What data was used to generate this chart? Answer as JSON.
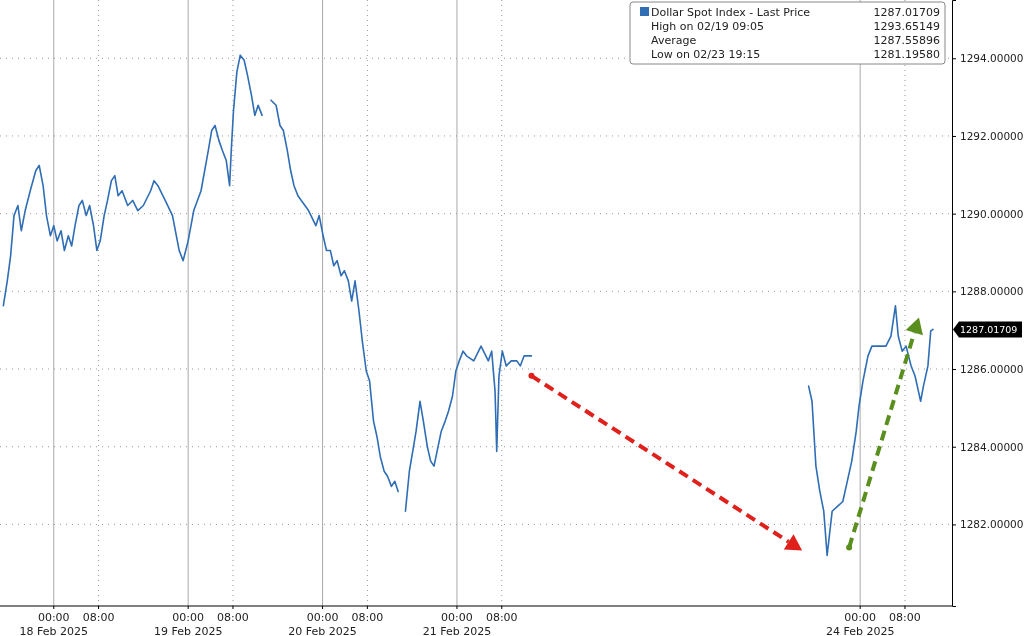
{
  "chart_data": {
    "type": "line",
    "x": [
      "2025-02-17T15:00",
      "2025-02-17T15:42",
      "2025-02-17T16:18",
      "2025-02-17T16:54",
      "2025-02-17T17:36",
      "2025-02-17T18:12",
      "2025-02-17T18:54",
      "2025-02-17T19:48",
      "2025-02-17T20:48",
      "2025-02-17T21:24",
      "2025-02-17T22:06",
      "2025-02-17T22:42",
      "2025-02-17T23:24",
      "2025-02-18T00:00",
      "2025-02-18T00:36",
      "2025-02-18T01:18",
      "2025-02-18T01:54",
      "2025-02-18T02:36",
      "2025-02-18T03:12",
      "2025-02-18T03:48",
      "2025-02-18T04:30",
      "2025-02-18T05:06",
      "2025-02-18T05:48",
      "2025-02-18T06:24",
      "2025-02-18T07:06",
      "2025-02-18T07:42",
      "2025-02-18T08:18",
      "2025-02-18T09:00",
      "2025-02-18T09:36",
      "2025-02-18T10:18",
      "2025-02-18T10:54",
      "2025-02-18T11:30",
      "2025-02-18T12:12",
      "2025-02-18T13:12",
      "2025-02-18T14:06",
      "2025-02-18T15:00",
      "2025-02-18T16:00",
      "2025-02-18T17:18",
      "2025-02-18T17:54",
      "2025-02-18T18:36",
      "2025-02-18T19:54",
      "2025-02-18T21:12",
      "2025-02-18T22:24",
      "2025-02-18T23:06",
      "2025-02-19T00:00",
      "2025-02-19T01:00",
      "2025-02-19T02:18",
      "2025-02-19T03:36",
      "2025-02-19T04:12",
      "2025-02-19T04:48",
      "2025-02-19T05:30",
      "2025-02-19T06:06",
      "2025-02-19T06:48",
      "2025-02-19T07:24",
      "2025-02-19T07:42",
      "2025-02-19T08:06",
      "2025-02-19T08:42",
      "2025-02-19T09:18",
      "2025-02-19T10:00",
      "2025-02-19T10:36",
      "2025-02-19T11:18",
      "2025-02-19T11:54",
      "2025-02-19T12:30",
      "2025-02-19T13:12",
      "2025-02-19T14:00",
      "2025-02-19T14:48",
      "2025-02-19T15:42",
      "2025-02-19T16:24",
      "2025-02-19T17:00",
      "2025-02-19T17:42",
      "2025-02-19T18:18",
      "2025-02-19T18:54",
      "2025-02-19T19:36",
      "2025-02-19T20:12",
      "2025-02-19T21:30",
      "2025-02-19T22:48",
      "2025-02-19T23:24",
      "2025-02-20T00:06",
      "2025-02-20T00:42",
      "2025-02-20T01:24",
      "2025-02-20T02:00",
      "2025-02-20T02:36",
      "2025-02-20T03:18",
      "2025-02-20T03:54",
      "2025-02-20T04:36",
      "2025-02-20T05:12",
      "2025-02-20T05:48",
      "2025-02-20T06:30",
      "2025-02-20T07:06",
      "2025-02-20T07:48",
      "2025-02-20T08:24",
      "2025-02-20T09:06",
      "2025-02-20T09:42",
      "2025-02-20T10:18",
      "2025-02-20T11:00",
      "2025-02-20T11:36",
      "2025-02-20T12:18",
      "2025-02-20T12:54",
      "2025-02-20T13:30",
      "2025-02-20T14:12",
      "2025-02-20T14:48",
      "2025-02-20T15:30",
      "2025-02-20T16:06",
      "2025-02-20T16:42",
      "2025-02-20T17:24",
      "2025-02-20T18:00",
      "2025-02-20T18:42",
      "2025-02-20T19:18",
      "2025-02-20T19:54",
      "2025-02-20T21:12",
      "2025-02-20T21:54",
      "2025-02-20T22:30",
      "2025-02-20T23:12",
      "2025-02-20T23:48",
      "2025-02-21T00:24",
      "2025-02-21T01:06",
      "2025-02-21T01:42",
      "2025-02-21T03:00",
      "2025-02-21T04:18",
      "2025-02-21T05:36",
      "2025-02-21T06:12",
      "2025-02-21T06:48",
      "2025-02-21T07:06",
      "2025-02-21T07:30",
      "2025-02-21T08:06",
      "2025-02-21T08:48",
      "2025-02-21T09:42",
      "2025-02-21T10:42",
      "2025-02-21T11:18",
      "2025-02-21T12:00",
      "2025-02-21T13:18",
      "2025-02-21T14:00",
      "2025-02-23T14:48",
      "2025-02-23T15:24",
      "2025-02-23T16:06",
      "2025-02-23T16:48",
      "2025-02-23T17:30",
      "2025-02-23T18:06",
      "2025-02-23T19:00",
      "2025-02-23T19:54",
      "2025-02-23T20:54",
      "2025-02-23T21:42",
      "2025-02-23T22:30",
      "2025-02-23T23:18",
      "2025-02-23T23:48",
      "2025-02-24T00:30",
      "2025-02-24T01:24",
      "2025-02-24T02:06",
      "2025-02-24T03:24",
      "2025-02-24T04:36",
      "2025-02-24T05:30",
      "2025-02-24T06:18",
      "2025-02-24T06:48",
      "2025-02-24T07:30",
      "2025-02-24T08:12",
      "2025-02-24T09:06",
      "2025-02-24T09:48",
      "2025-02-24T10:24",
      "2025-02-24T10:48",
      "2025-02-24T11:18",
      "2025-02-24T12:06",
      "2025-02-24T12:36",
      "2025-02-24T13:00"
    ],
    "series": [
      {
        "name": "Dollar Spot Index - Last Price",
        "color": "#2f6db5",
        "values": [
          1287.63,
          1288.27,
          1288.92,
          1289.95,
          1290.21,
          1289.56,
          1290.08,
          1290.59,
          1291.11,
          1291.24,
          1290.72,
          1289.95,
          1289.43,
          1289.69,
          1289.3,
          1289.56,
          1289.05,
          1289.43,
          1289.17,
          1289.69,
          1290.21,
          1290.34,
          1289.95,
          1290.21,
          1289.69,
          1289.05,
          1289.3,
          1289.95,
          1290.34,
          1290.85,
          1290.98,
          1290.46,
          1290.59,
          1290.21,
          1290.34,
          1290.08,
          1290.21,
          1290.59,
          1290.85,
          1290.72,
          1290.34,
          1289.95,
          1289.05,
          1288.79,
          1289.3,
          1290.08,
          1290.59,
          1291.63,
          1292.14,
          1292.27,
          1291.88,
          1291.63,
          1291.37,
          1290.72,
          1291.63,
          1292.66,
          1293.65,
          1294.08,
          1293.95,
          1293.56,
          1293.05,
          1292.53,
          1292.79,
          1292.53,
          null,
          1292.92,
          1292.79,
          1292.27,
          1292.14,
          1291.63,
          1291.11,
          1290.72,
          1290.46,
          1290.34,
          1290.08,
          1289.69,
          1289.95,
          1289.43,
          1289.05,
          1289.05,
          1288.66,
          1288.79,
          1288.4,
          1288.53,
          1288.27,
          1287.75,
          1288.27,
          1287.5,
          1286.72,
          1285.95,
          1285.69,
          1284.66,
          1284.27,
          1283.75,
          1283.37,
          1283.24,
          1282.98,
          1283.11,
          1282.85,
          null,
          1282.34,
          1283.37,
          1283.88,
          1284.4,
          1285.17,
          1284.66,
          1284.01,
          1283.63,
          1283.5,
          1284.4,
          1284.66,
          1284.92,
          1285.3,
          1285.95,
          1286.21,
          1286.46,
          1286.34,
          1286.21,
          1286.59,
          1286.21,
          1286.46,
          1285.43,
          1283.88,
          1285.82,
          1286.46,
          1286.08,
          1286.21,
          1286.21,
          1286.08,
          1286.34,
          1286.34,
          null,
          1285.56,
          1285.17,
          1283.5,
          1282.85,
          1282.34,
          1281.2,
          1282.34,
          1282.46,
          1282.59,
          1283.11,
          1283.63,
          1284.4,
          1285.05,
          1285.69,
          1286.34,
          1286.59,
          1286.59,
          1286.59,
          1286.85,
          1287.63,
          1286.85,
          1286.46,
          1286.59,
          1286.08,
          1285.82,
          1285.43,
          1285.17,
          1285.56,
          1286.08,
          1286.98,
          1287.02
        ]
      }
    ],
    "xlim": [
      "2025-02-17T14:24",
      "2025-02-24T16:24"
    ],
    "xticks": [
      {
        "value": "2025-02-18T00:00",
        "label": "00:00\n18 Feb 2025"
      },
      {
        "value": "2025-02-18T08:00",
        "label": "08:00"
      },
      {
        "value": "2025-02-19T00:00",
        "label": "00:00\n19 Feb 2025"
      },
      {
        "value": "2025-02-19T08:00",
        "label": "08:00"
      },
      {
        "value": "2025-02-20T00:00",
        "label": "00:00\n20 Feb 2025"
      },
      {
        "value": "2025-02-20T08:00",
        "label": "08:00"
      },
      {
        "value": "2025-02-21T00:00",
        "label": "00:00\n21 Feb 2025"
      },
      {
        "value": "2025-02-21T08:00",
        "label": "08:00"
      },
      {
        "value": "2025-02-24T00:00",
        "label": "00:00\n24 Feb 2025"
      },
      {
        "value": "2025-02-24T08:00",
        "label": "08:00"
      }
    ],
    "ylim": [
      1279.9,
      1295.5
    ],
    "yticks": [
      {
        "value": 1282,
        "label": "1282.00000"
      },
      {
        "value": 1284,
        "label": "1284.00000"
      },
      {
        "value": 1286,
        "label": "1286.00000"
      },
      {
        "value": 1288,
        "label": "1288.00000"
      },
      {
        "value": 1290,
        "label": "1290.00000"
      },
      {
        "value": 1292,
        "label": "1292.00000"
      },
      {
        "value": 1294,
        "label": "1294.00000"
      }
    ],
    "grid": true,
    "legend": "top right",
    "annotations": [
      "1287.01709",
      "High on 02/19 09:05",
      "1293.65149",
      "Average",
      "1287.55896",
      "Low on 02/23 19:15",
      "1281.19580",
      "1287.01709"
    ]
  }
}
